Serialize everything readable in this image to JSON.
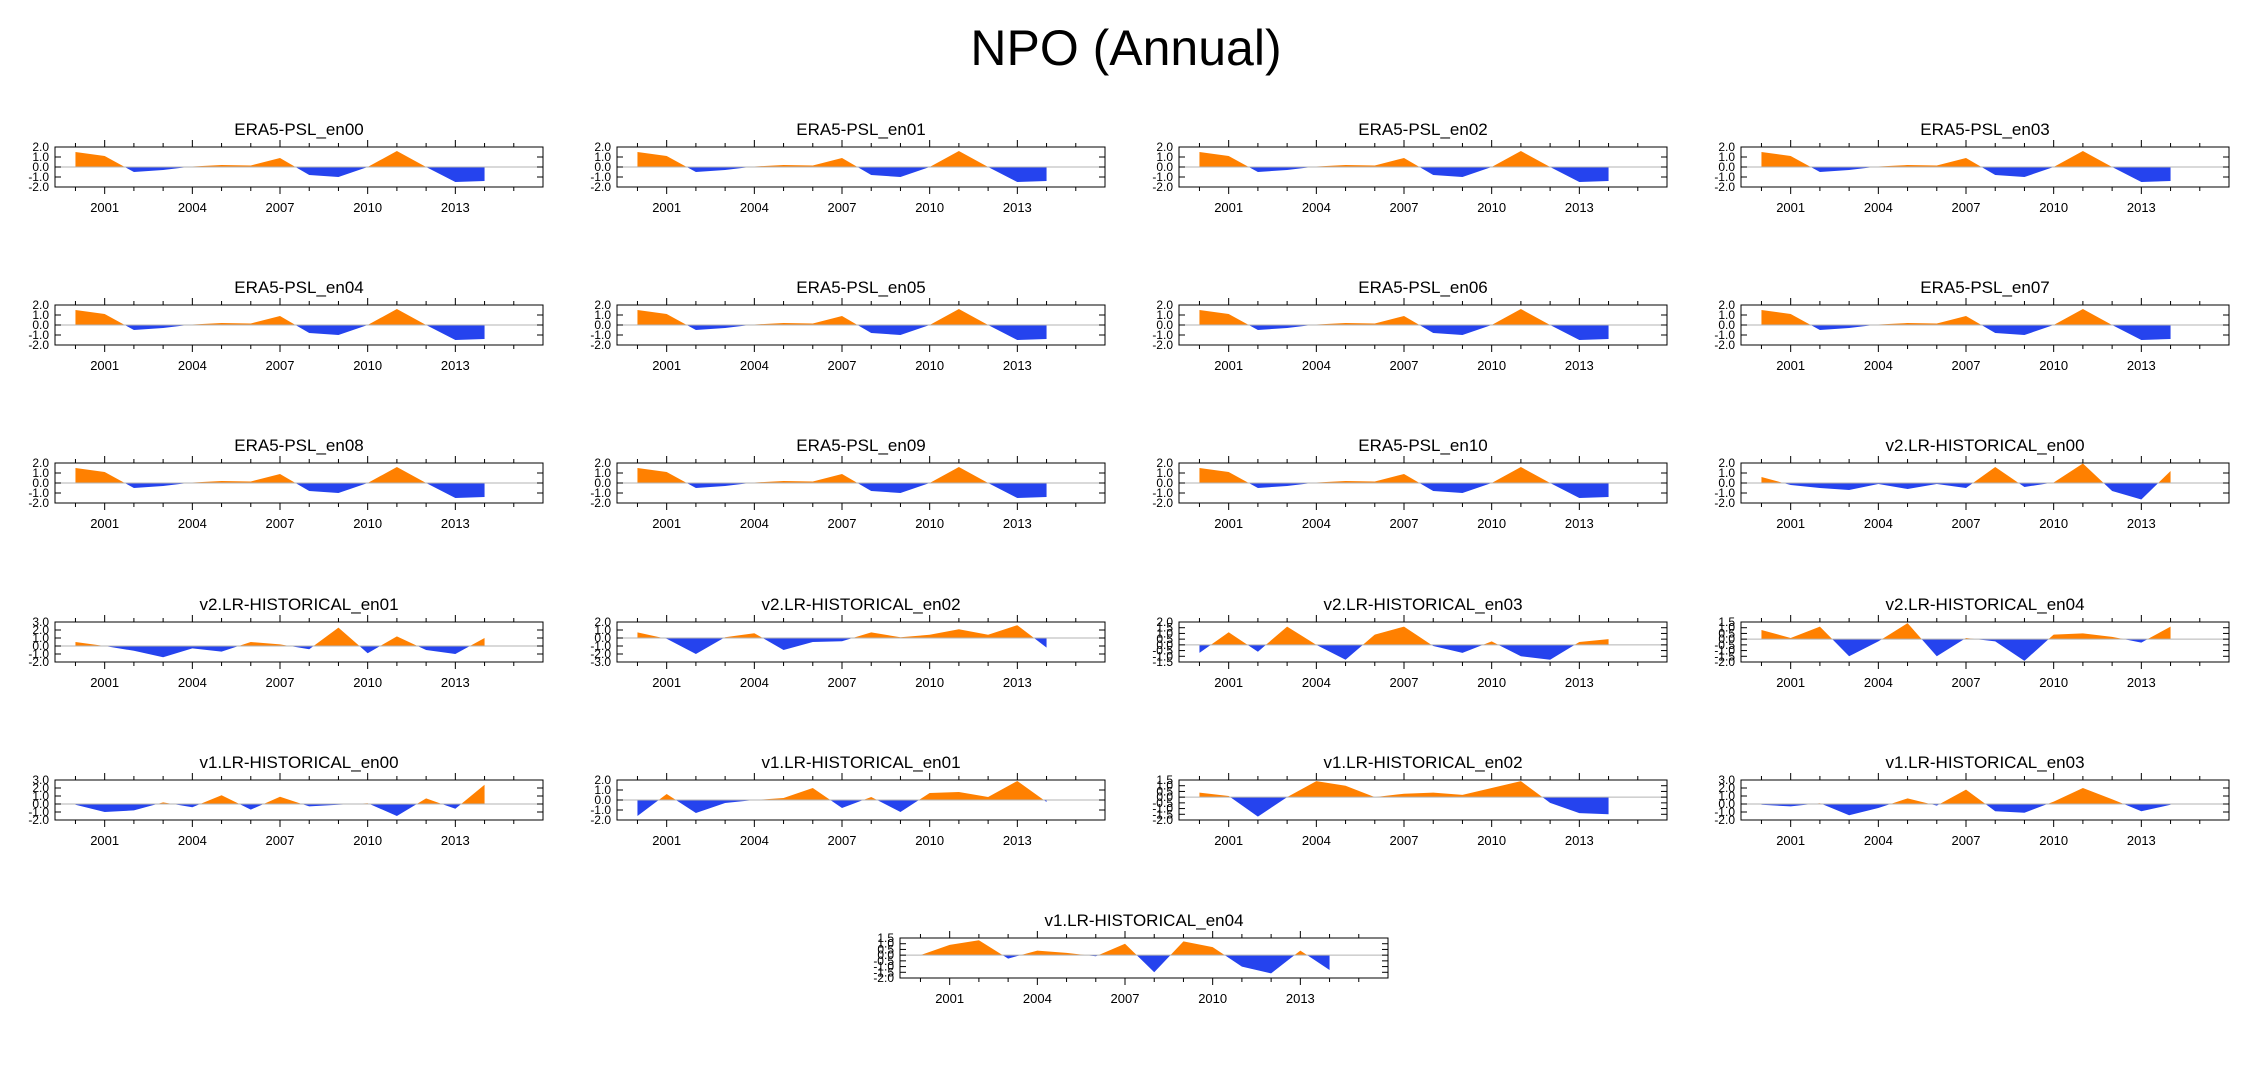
{
  "title": "NPO (Annual)",
  "colors": {
    "positive": "#ff8000",
    "negative": "#2543ee",
    "axis": "#000000",
    "zero": "#b3b3b3"
  },
  "chart_data": [
    {
      "type": "area",
      "title": "ERA5-PSL_en00",
      "x": [
        2000,
        2001,
        2002,
        2003,
        2004,
        2005,
        2006,
        2007,
        2008,
        2009,
        2010,
        2011,
        2012,
        2013,
        2014
      ],
      "values": [
        1.5,
        1.1,
        -0.5,
        -0.3,
        0.05,
        0.2,
        0.15,
        0.9,
        -0.8,
        -1.0,
        0.0,
        1.6,
        0.0,
        -1.5,
        -1.4
      ],
      "ylim": [
        -2,
        2
      ],
      "yticks": [
        "2.0",
        "1.0",
        "0.0",
        "-1.0",
        "-2.0"
      ],
      "xticks": [
        "2001",
        "2004",
        "2007",
        "2010",
        "2013"
      ]
    },
    {
      "type": "area",
      "title": "ERA5-PSL_en01",
      "x": [
        2000,
        2001,
        2002,
        2003,
        2004,
        2005,
        2006,
        2007,
        2008,
        2009,
        2010,
        2011,
        2012,
        2013,
        2014
      ],
      "values": [
        1.5,
        1.1,
        -0.5,
        -0.3,
        0.05,
        0.2,
        0.15,
        0.9,
        -0.8,
        -1.0,
        0.0,
        1.6,
        0.0,
        -1.5,
        -1.4
      ],
      "ylim": [
        -2,
        2
      ],
      "yticks": [
        "2.0",
        "1.0",
        "0.0",
        "-1.0",
        "-2.0"
      ],
      "xticks": [
        "2001",
        "2004",
        "2007",
        "2010",
        "2013"
      ]
    },
    {
      "type": "area",
      "title": "ERA5-PSL_en02",
      "x": [
        2000,
        2001,
        2002,
        2003,
        2004,
        2005,
        2006,
        2007,
        2008,
        2009,
        2010,
        2011,
        2012,
        2013,
        2014
      ],
      "values": [
        1.5,
        1.1,
        -0.5,
        -0.3,
        0.05,
        0.2,
        0.15,
        0.9,
        -0.8,
        -1.0,
        0.0,
        1.6,
        0.0,
        -1.5,
        -1.4
      ],
      "ylim": [
        -2,
        2
      ],
      "yticks": [
        "2.0",
        "1.0",
        "0.0",
        "-1.0",
        "-2.0"
      ],
      "xticks": [
        "2001",
        "2004",
        "2007",
        "2010",
        "2013"
      ]
    },
    {
      "type": "area",
      "title": "ERA5-PSL_en03",
      "x": [
        2000,
        2001,
        2002,
        2003,
        2004,
        2005,
        2006,
        2007,
        2008,
        2009,
        2010,
        2011,
        2012,
        2013,
        2014
      ],
      "values": [
        1.5,
        1.1,
        -0.5,
        -0.3,
        0.05,
        0.2,
        0.15,
        0.9,
        -0.8,
        -1.0,
        0.0,
        1.6,
        0.0,
        -1.5,
        -1.4
      ],
      "ylim": [
        -2,
        2
      ],
      "yticks": [
        "2.0",
        "1.0",
        "0.0",
        "-1.0",
        "-2.0"
      ],
      "xticks": [
        "2001",
        "2004",
        "2007",
        "2010",
        "2013"
      ]
    },
    {
      "type": "area",
      "title": "ERA5-PSL_en04",
      "x": [
        2000,
        2001,
        2002,
        2003,
        2004,
        2005,
        2006,
        2007,
        2008,
        2009,
        2010,
        2011,
        2012,
        2013,
        2014
      ],
      "values": [
        1.5,
        1.1,
        -0.5,
        -0.3,
        0.05,
        0.2,
        0.15,
        0.9,
        -0.8,
        -1.0,
        0.0,
        1.6,
        0.0,
        -1.5,
        -1.4
      ],
      "ylim": [
        -2,
        2
      ],
      "yticks": [
        "2.0",
        "1.0",
        "0.0",
        "-1.0",
        "-2.0"
      ],
      "xticks": [
        "2001",
        "2004",
        "2007",
        "2010",
        "2013"
      ]
    },
    {
      "type": "area",
      "title": "ERA5-PSL_en05",
      "x": [
        2000,
        2001,
        2002,
        2003,
        2004,
        2005,
        2006,
        2007,
        2008,
        2009,
        2010,
        2011,
        2012,
        2013,
        2014
      ],
      "values": [
        1.5,
        1.1,
        -0.5,
        -0.3,
        0.05,
        0.2,
        0.15,
        0.9,
        -0.8,
        -1.0,
        0.0,
        1.6,
        0.0,
        -1.5,
        -1.4
      ],
      "ylim": [
        -2,
        2
      ],
      "yticks": [
        "2.0",
        "1.0",
        "0.0",
        "-1.0",
        "-2.0"
      ],
      "xticks": [
        "2001",
        "2004",
        "2007",
        "2010",
        "2013"
      ]
    },
    {
      "type": "area",
      "title": "ERA5-PSL_en06",
      "x": [
        2000,
        2001,
        2002,
        2003,
        2004,
        2005,
        2006,
        2007,
        2008,
        2009,
        2010,
        2011,
        2012,
        2013,
        2014
      ],
      "values": [
        1.5,
        1.1,
        -0.5,
        -0.3,
        0.05,
        0.2,
        0.15,
        0.9,
        -0.8,
        -1.0,
        0.0,
        1.6,
        0.0,
        -1.5,
        -1.4
      ],
      "ylim": [
        -2,
        2
      ],
      "yticks": [
        "2.0",
        "1.0",
        "0.0",
        "-1.0",
        "-2.0"
      ],
      "xticks": [
        "2001",
        "2004",
        "2007",
        "2010",
        "2013"
      ]
    },
    {
      "type": "area",
      "title": "ERA5-PSL_en07",
      "x": [
        2000,
        2001,
        2002,
        2003,
        2004,
        2005,
        2006,
        2007,
        2008,
        2009,
        2010,
        2011,
        2012,
        2013,
        2014
      ],
      "values": [
        1.5,
        1.1,
        -0.5,
        -0.3,
        0.05,
        0.2,
        0.15,
        0.9,
        -0.8,
        -1.0,
        0.0,
        1.6,
        0.0,
        -1.5,
        -1.4
      ],
      "ylim": [
        -2,
        2
      ],
      "yticks": [
        "2.0",
        "1.0",
        "0.0",
        "-1.0",
        "-2.0"
      ],
      "xticks": [
        "2001",
        "2004",
        "2007",
        "2010",
        "2013"
      ]
    },
    {
      "type": "area",
      "title": "ERA5-PSL_en08",
      "x": [
        2000,
        2001,
        2002,
        2003,
        2004,
        2005,
        2006,
        2007,
        2008,
        2009,
        2010,
        2011,
        2012,
        2013,
        2014
      ],
      "values": [
        1.5,
        1.1,
        -0.5,
        -0.3,
        0.05,
        0.2,
        0.15,
        0.9,
        -0.8,
        -1.0,
        0.0,
        1.6,
        0.0,
        -1.5,
        -1.4
      ],
      "ylim": [
        -2,
        2
      ],
      "yticks": [
        "2.0",
        "1.0",
        "0.0",
        "-1.0",
        "-2.0"
      ],
      "xticks": [
        "2001",
        "2004",
        "2007",
        "2010",
        "2013"
      ]
    },
    {
      "type": "area",
      "title": "ERA5-PSL_en09",
      "x": [
        2000,
        2001,
        2002,
        2003,
        2004,
        2005,
        2006,
        2007,
        2008,
        2009,
        2010,
        2011,
        2012,
        2013,
        2014
      ],
      "values": [
        1.5,
        1.1,
        -0.5,
        -0.3,
        0.05,
        0.2,
        0.15,
        0.9,
        -0.8,
        -1.0,
        0.0,
        1.6,
        0.0,
        -1.5,
        -1.4
      ],
      "ylim": [
        -2,
        2
      ],
      "yticks": [
        "2.0",
        "1.0",
        "0.0",
        "-1.0",
        "-2.0"
      ],
      "xticks": [
        "2001",
        "2004",
        "2007",
        "2010",
        "2013"
      ]
    },
    {
      "type": "area",
      "title": "ERA5-PSL_en10",
      "x": [
        2000,
        2001,
        2002,
        2003,
        2004,
        2005,
        2006,
        2007,
        2008,
        2009,
        2010,
        2011,
        2012,
        2013,
        2014
      ],
      "values": [
        1.5,
        1.1,
        -0.5,
        -0.3,
        0.05,
        0.2,
        0.15,
        0.9,
        -0.8,
        -1.0,
        0.0,
        1.6,
        0.0,
        -1.5,
        -1.4
      ],
      "ylim": [
        -2,
        2
      ],
      "yticks": [
        "2.0",
        "1.0",
        "0.0",
        "-1.0",
        "-2.0"
      ],
      "xticks": [
        "2001",
        "2004",
        "2007",
        "2010",
        "2013"
      ]
    },
    {
      "type": "area",
      "title": "v2.LR-HISTORICAL_en00",
      "x": [
        2000,
        2001,
        2002,
        2003,
        2004,
        2005,
        2006,
        2007,
        2008,
        2009,
        2010,
        2011,
        2012,
        2013,
        2014
      ],
      "values": [
        0.6,
        -0.2,
        -0.5,
        -0.7,
        -0.1,
        -0.6,
        -0.1,
        -0.5,
        1.6,
        -0.4,
        0.05,
        1.95,
        -0.8,
        -1.65,
        1.2
      ],
      "ylim": [
        -2,
        2
      ],
      "yticks": [
        "2.0",
        "1.0",
        "0.0",
        "-1.0",
        "-2.0"
      ],
      "xticks": [
        "2001",
        "2004",
        "2007",
        "2010",
        "2013"
      ]
    },
    {
      "type": "area",
      "title": "v2.LR-HISTORICAL_en01",
      "x": [
        2000,
        2001,
        2002,
        2003,
        2004,
        2005,
        2006,
        2007,
        2008,
        2009,
        2010,
        2011,
        2012,
        2013,
        2014
      ],
      "values": [
        0.5,
        0.0,
        -0.6,
        -1.4,
        -0.3,
        -0.7,
        0.5,
        0.2,
        -0.4,
        2.3,
        -0.9,
        1.2,
        -0.5,
        -1.0,
        1.0
      ],
      "ylim": [
        -2,
        3
      ],
      "yticks": [
        "3.0",
        "2.0",
        "1.0",
        "0.0",
        "-1.0",
        "-2.0"
      ],
      "xticks": [
        "2001",
        "2004",
        "2007",
        "2010",
        "2013"
      ]
    },
    {
      "type": "area",
      "title": "v2.LR-HISTORICAL_en02",
      "x": [
        2000,
        2001,
        2002,
        2003,
        2004,
        2005,
        2006,
        2007,
        2008,
        2009,
        2010,
        2011,
        2012,
        2013,
        2014
      ],
      "values": [
        0.7,
        -0.1,
        -2.0,
        0.1,
        0.6,
        -1.5,
        -0.5,
        -0.4,
        0.7,
        0.1,
        0.4,
        1.1,
        0.4,
        1.6,
        -1.2
      ],
      "ylim": [
        -3,
        2
      ],
      "yticks": [
        "2.0",
        "1.0",
        "0.0",
        "-1.0",
        "-2.0",
        "-3.0"
      ],
      "xticks": [
        "2001",
        "2004",
        "2007",
        "2010",
        "2013"
      ]
    },
    {
      "type": "area",
      "title": "v2.LR-HISTORICAL_en03",
      "x": [
        2000,
        2001,
        2002,
        2003,
        2004,
        2005,
        2006,
        2007,
        2008,
        2009,
        2010,
        2011,
        2012,
        2013,
        2014
      ],
      "values": [
        -0.7,
        1.1,
        -0.6,
        1.6,
        0.0,
        -1.3,
        0.9,
        1.6,
        -0.1,
        -0.7,
        0.3,
        -1.0,
        -1.3,
        0.25,
        0.5
      ],
      "ylim": [
        -1.5,
        2
      ],
      "yticks": [
        "2.0",
        "1.5",
        "1.0",
        "0.5",
        "0.0",
        "-0.5",
        "-1.0",
        "-1.5"
      ],
      "xticks": [
        "2001",
        "2004",
        "2007",
        "2010",
        "2013"
      ]
    },
    {
      "type": "area",
      "title": "v2.LR-HISTORICAL_en04",
      "x": [
        2000,
        2001,
        2002,
        2003,
        2004,
        2005,
        2006,
        2007,
        2008,
        2009,
        2010,
        2011,
        2012,
        2013,
        2014
      ],
      "values": [
        0.8,
        0.1,
        1.1,
        -1.5,
        -0.2,
        1.4,
        -1.5,
        0.1,
        -0.2,
        -1.9,
        0.4,
        0.5,
        0.2,
        -0.3,
        1.1
      ],
      "ylim": [
        -2,
        1.5
      ],
      "yticks": [
        "1.5",
        "1.0",
        "0.5",
        "0.0",
        "-0.5",
        "-1.0",
        "-1.5",
        "-2.0"
      ],
      "xticks": [
        "2001",
        "2004",
        "2007",
        "2010",
        "2013"
      ]
    },
    {
      "type": "area",
      "title": "v1.LR-HISTORICAL_en00",
      "x": [
        2000,
        2001,
        2002,
        2003,
        2004,
        2005,
        2006,
        2007,
        2008,
        2009,
        2010,
        2011,
        2012,
        2013,
        2014
      ],
      "values": [
        -0.1,
        -1.0,
        -0.8,
        0.2,
        -0.4,
        1.1,
        -0.7,
        0.9,
        -0.3,
        -0.1,
        0.1,
        -1.5,
        0.7,
        -0.6,
        2.4
      ],
      "ylim": [
        -2,
        3
      ],
      "yticks": [
        "3.0",
        "2.0",
        "1.0",
        "0.0",
        "-1.0",
        "-2.0"
      ],
      "xticks": [
        "2001",
        "2004",
        "2007",
        "2010",
        "2013"
      ]
    },
    {
      "type": "area",
      "title": "v1.LR-HISTORICAL_en01",
      "x": [
        2000,
        2001,
        2002,
        2003,
        2004,
        2005,
        2006,
        2007,
        2008,
        2009,
        2010,
        2011,
        2012,
        2013,
        2014
      ],
      "values": [
        -1.6,
        0.6,
        -1.3,
        -0.3,
        0.0,
        0.2,
        1.2,
        -0.8,
        0.3,
        -1.2,
        0.7,
        0.8,
        0.3,
        1.9,
        -0.2
      ],
      "ylim": [
        -2,
        2
      ],
      "yticks": [
        "2.0",
        "1.0",
        "0.0",
        "-1.0",
        "-2.0"
      ],
      "xticks": [
        "2001",
        "2004",
        "2007",
        "2010",
        "2013"
      ]
    },
    {
      "type": "area",
      "title": "v1.LR-HISTORICAL_en02",
      "x": [
        2000,
        2001,
        2002,
        2003,
        2004,
        2005,
        2006,
        2007,
        2008,
        2009,
        2010,
        2011,
        2012,
        2013,
        2014
      ],
      "values": [
        0.4,
        0.1,
        -1.7,
        0.0,
        1.4,
        1.0,
        0.0,
        0.3,
        0.4,
        0.2,
        0.8,
        1.4,
        -0.5,
        -1.4,
        -1.5
      ],
      "ylim": [
        -2,
        1.5
      ],
      "yticks": [
        "1.5",
        "1.0",
        "0.5",
        "0.0",
        "-0.5",
        "-1.0",
        "-1.5",
        "-2.0"
      ],
      "xticks": [
        "2001",
        "2004",
        "2007",
        "2010",
        "2013"
      ]
    },
    {
      "type": "area",
      "title": "v1.LR-HISTORICAL_en03",
      "x": [
        2000,
        2001,
        2002,
        2003,
        2004,
        2005,
        2006,
        2007,
        2008,
        2009,
        2010,
        2011,
        2012,
        2013,
        2014
      ],
      "values": [
        -0.1,
        -0.3,
        0.1,
        -1.4,
        -0.5,
        0.7,
        -0.2,
        1.8,
        -0.9,
        -1.1,
        0.3,
        2.0,
        0.6,
        -0.9,
        -0.1
      ],
      "ylim": [
        -2,
        3
      ],
      "yticks": [
        "3.0",
        "2.0",
        "1.0",
        "0.0",
        "-1.0",
        "-2.0"
      ],
      "xticks": [
        "2001",
        "2004",
        "2007",
        "2010",
        "2013"
      ]
    },
    {
      "type": "area",
      "title": "v1.LR-HISTORICAL_en04",
      "x": [
        2000,
        2001,
        2002,
        2003,
        2004,
        2005,
        2006,
        2007,
        2008,
        2009,
        2010,
        2011,
        2012,
        2013,
        2014
      ],
      "values": [
        0.0,
        0.9,
        1.3,
        -0.3,
        0.4,
        0.2,
        -0.1,
        1.0,
        -1.5,
        1.2,
        0.7,
        -1.0,
        -1.6,
        0.4,
        -1.3
      ],
      "ylim": [
        -2,
        1.5
      ],
      "yticks": [
        "1.5",
        "1.0",
        "0.5",
        "0.0",
        "-0.5",
        "-1.0",
        "-1.5",
        "-2.0"
      ],
      "xticks": [
        "2001",
        "2004",
        "2007",
        "2010",
        "2013"
      ]
    }
  ]
}
